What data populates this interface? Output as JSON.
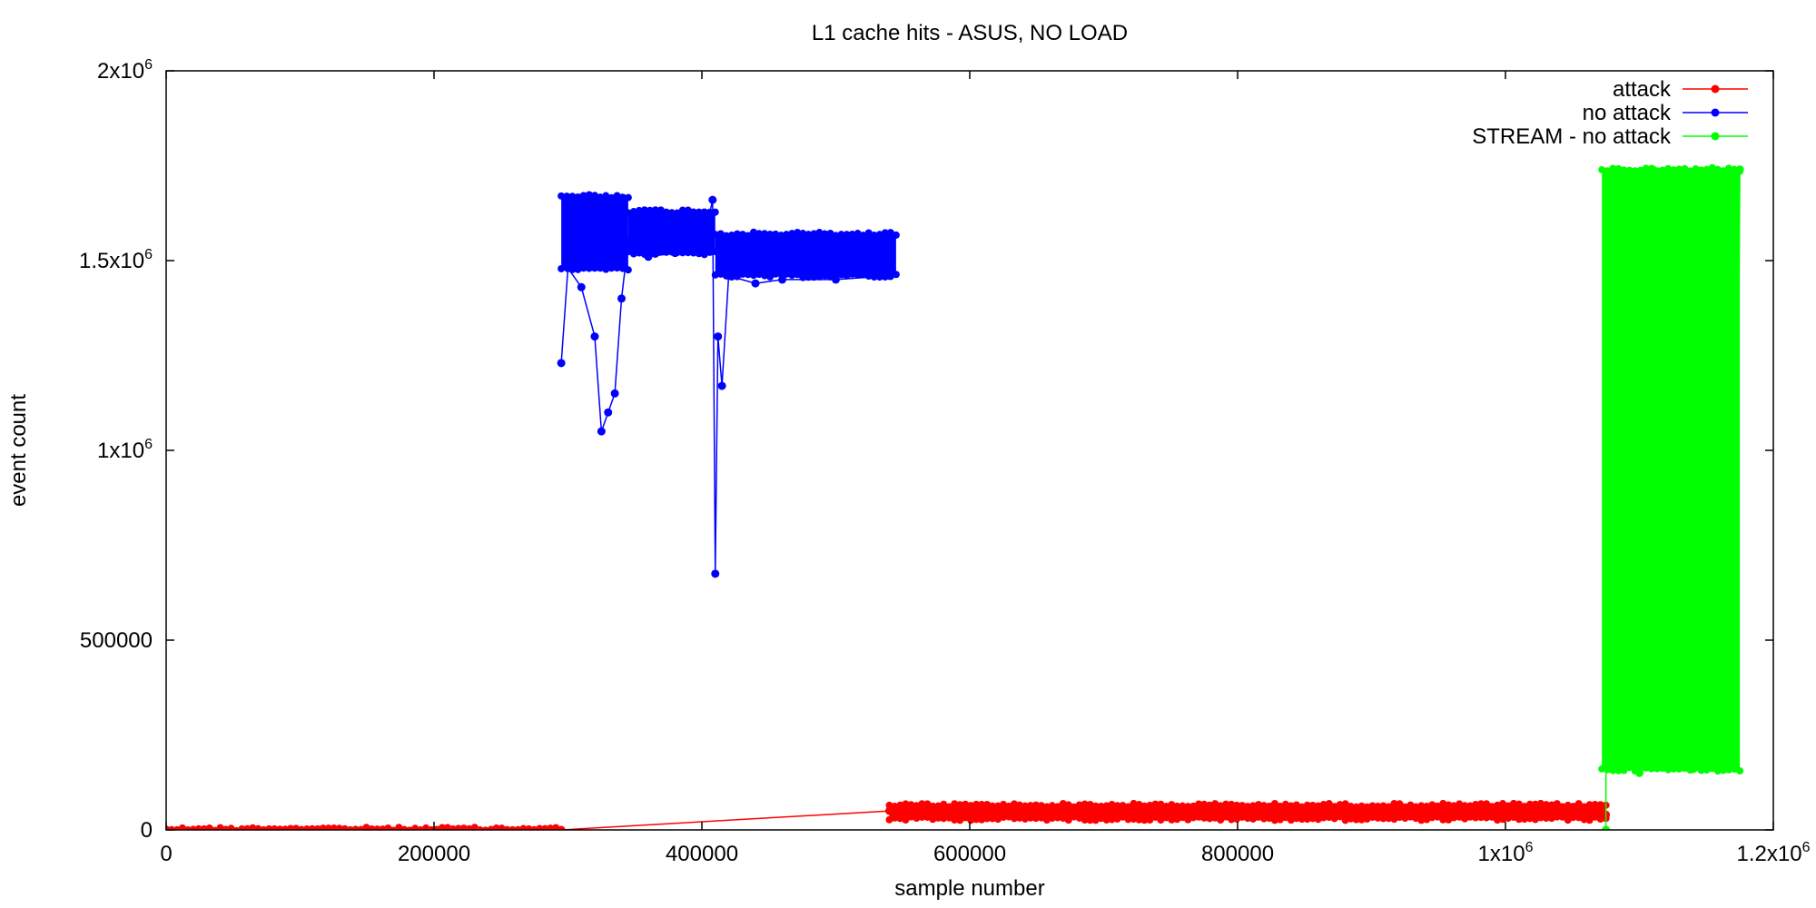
{
  "chart_data": {
    "type": "line",
    "title": "L1 cache hits - ASUS, NO LOAD",
    "xlabel": "sample number",
    "ylabel": "event count",
    "xlim": [
      0,
      1200000
    ],
    "ylim": [
      0,
      2000000
    ],
    "x_ticks": [
      {
        "value": 0,
        "label": "0"
      },
      {
        "value": 200000,
        "label": "200000"
      },
      {
        "value": 400000,
        "label": "400000"
      },
      {
        "value": 600000,
        "label": "600000"
      },
      {
        "value": 800000,
        "label": "800000"
      },
      {
        "value": 1000000,
        "label": "1x10",
        "sup": "6"
      },
      {
        "value": 1200000,
        "label": "1.2x10",
        "sup": "6"
      }
    ],
    "y_ticks": [
      {
        "value": 0,
        "label": "0"
      },
      {
        "value": 500000,
        "label": "500000"
      },
      {
        "value": 1000000,
        "label": "1x10",
        "sup": "6"
      },
      {
        "value": 1500000,
        "label": "1.5x10",
        "sup": "6"
      },
      {
        "value": 2000000,
        "label": "2x10",
        "sup": "6"
      }
    ],
    "grid": false,
    "legend_position": "top-right",
    "series": [
      {
        "name": "attack",
        "color": "#ff0000",
        "style": "linespoints",
        "bands": [
          {
            "x_range": [
              0,
              295000
            ],
            "y_range": [
              0,
              2000
            ]
          },
          {
            "x_range": [
              540000,
              1075000
            ],
            "y_range": [
              30000,
              65000
            ]
          }
        ],
        "points": [
          [
            0,
            0
          ],
          [
            295000,
            0
          ],
          [
            540000,
            50000
          ],
          [
            545000,
            40000
          ],
          [
            600000,
            48000
          ],
          [
            650000,
            55000
          ],
          [
            700000,
            52000
          ],
          [
            750000,
            45000
          ],
          [
            800000,
            56000
          ],
          [
            860000,
            60000
          ],
          [
            900000,
            50000
          ],
          [
            970000,
            55000
          ],
          [
            1000000,
            48000
          ],
          [
            1050000,
            52000
          ],
          [
            1070000,
            62000
          ],
          [
            1075000,
            40000
          ]
        ]
      },
      {
        "name": "no attack",
        "color": "#0000ff",
        "style": "linespoints",
        "bands": [
          {
            "x_range": [
              295000,
              345000
            ],
            "y_range": [
              1480000,
              1670000
            ]
          },
          {
            "x_range": [
              345000,
              410000
            ],
            "y_range": [
              1520000,
              1630000
            ]
          },
          {
            "x_range": [
              410000,
              545000
            ],
            "y_range": [
              1460000,
              1570000
            ]
          }
        ],
        "points": [
          [
            295000,
            1230000
          ],
          [
            300000,
            1480000
          ],
          [
            310000,
            1430000
          ],
          [
            320000,
            1300000
          ],
          [
            325000,
            1050000
          ],
          [
            330000,
            1100000
          ],
          [
            335000,
            1150000
          ],
          [
            340000,
            1400000
          ],
          [
            345000,
            1550000
          ],
          [
            360000,
            1510000
          ],
          [
            380000,
            1520000
          ],
          [
            400000,
            1530000
          ],
          [
            408000,
            1660000
          ],
          [
            410000,
            675000
          ],
          [
            412000,
            1300000
          ],
          [
            415000,
            1170000
          ],
          [
            420000,
            1460000
          ],
          [
            440000,
            1440000
          ],
          [
            460000,
            1450000
          ],
          [
            500000,
            1450000
          ],
          [
            540000,
            1460000
          ]
        ]
      },
      {
        "name": "STREAM - no attack",
        "color": "#00ff00",
        "style": "linespoints",
        "bands": [
          {
            "x_range": [
              1072000,
              1175000
            ],
            "y_range": [
              160000,
              1740000
            ]
          }
        ],
        "points": [
          [
            1075000,
            0
          ],
          [
            1075000,
            180000
          ],
          [
            1078000,
            1700000
          ],
          [
            1100000,
            150000
          ],
          [
            1110000,
            1740000
          ],
          [
            1140000,
            160000
          ],
          [
            1150000,
            1730000
          ],
          [
            1172000,
            165000
          ],
          [
            1175000,
            1740000
          ]
        ]
      }
    ]
  }
}
